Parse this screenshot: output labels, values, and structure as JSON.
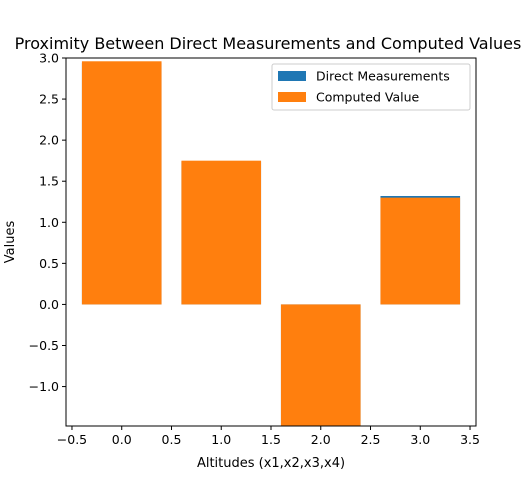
{
  "chart_data": {
    "type": "bar",
    "title": "Proximity Between Direct Measurements and Computed Values",
    "xlabel": "Altitudes (x1,x2,x3,x4)",
    "ylabel": "Values",
    "x": [
      0,
      1,
      2,
      3
    ],
    "series": [
      {
        "name": "Direct Measurements",
        "color": "#1f77b4",
        "values": [
          2.94,
          1.74,
          -1.48,
          1.32
        ]
      },
      {
        "name": "Computed Value",
        "color": "#ff7f0e",
        "values": [
          2.96,
          1.75,
          -1.48,
          1.3
        ]
      }
    ],
    "bar_width": 0.8,
    "xlim": [
      -0.56,
      3.56
    ],
    "ylim": [
      -1.48,
      3.0
    ],
    "x_ticks": [
      -0.5,
      0.0,
      0.5,
      1.0,
      1.5,
      2.0,
      2.5,
      3.0,
      3.5
    ],
    "x_tick_labels": [
      "−0.5",
      "0.0",
      "0.5",
      "1.0",
      "1.5",
      "2.0",
      "2.5",
      "3.0",
      "3.5"
    ],
    "y_ticks": [
      -1.0,
      -0.5,
      0.0,
      0.5,
      1.0,
      1.5,
      2.0,
      2.5,
      3.0
    ],
    "y_tick_labels": [
      "−1.0",
      "−0.5",
      "0.0",
      "0.5",
      "1.0",
      "1.5",
      "2.0",
      "2.5",
      "3.0"
    ],
    "grid": false,
    "legend_position": "top-right"
  }
}
